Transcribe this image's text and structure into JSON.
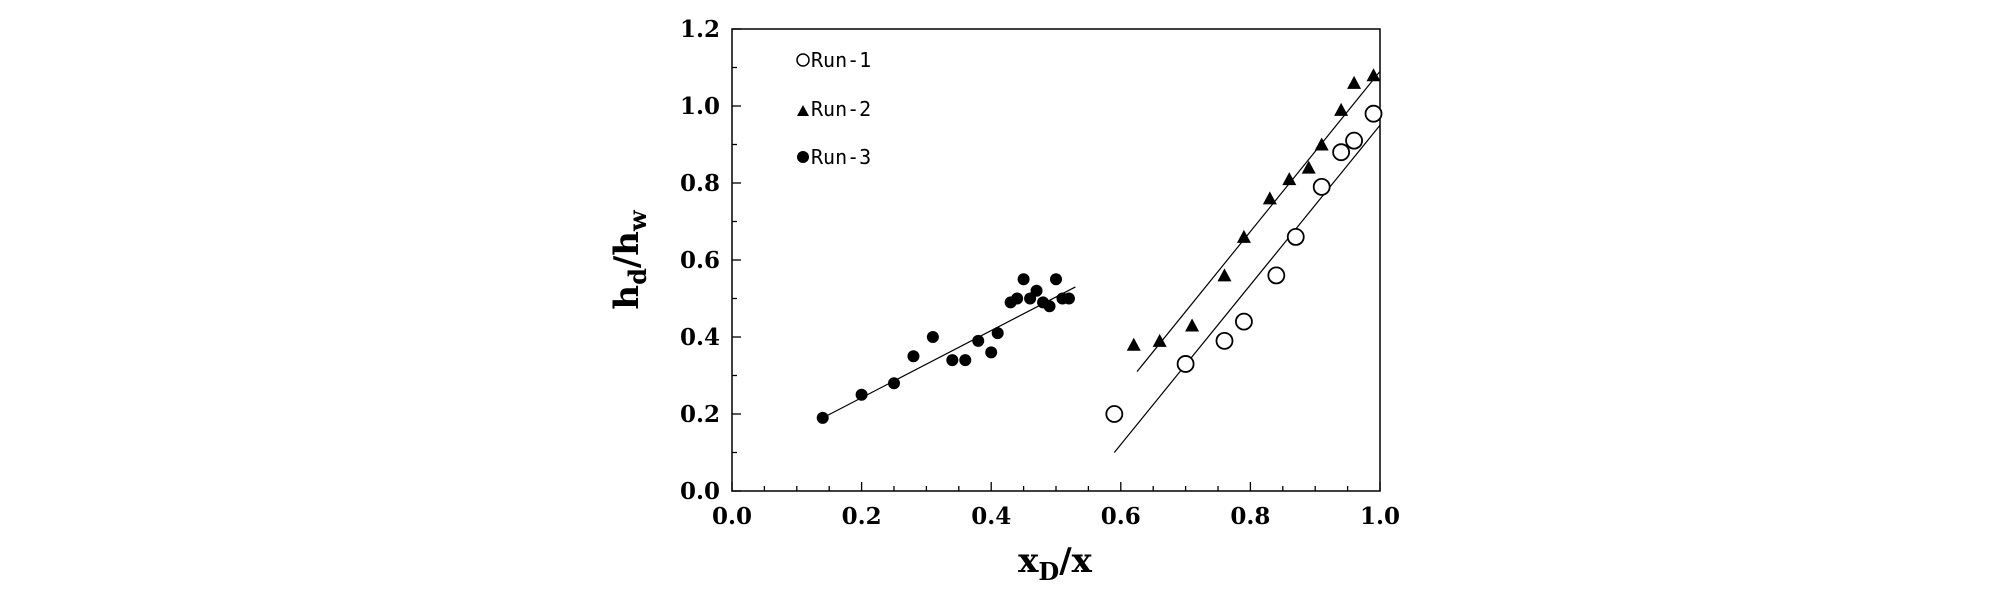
{
  "chart_data": {
    "type": "scatter",
    "xlabel": {
      "main": "x",
      "sub": "D",
      "tail": "/x"
    },
    "ylabel": {
      "main1": "h",
      "sub1": "d",
      "mid": "/h",
      "sub2": "w"
    },
    "xlim": [
      0.0,
      1.0
    ],
    "ylim": [
      0.0,
      1.2
    ],
    "xticks": [
      0.0,
      0.2,
      0.4,
      0.6,
      0.8,
      1.0
    ],
    "yticks": [
      0.0,
      0.2,
      0.4,
      0.6,
      0.8,
      1.0,
      1.2
    ],
    "xtick_labels": [
      "0.0",
      "0.2",
      "0.4",
      "0.6",
      "0.8",
      "1.0"
    ],
    "ytick_labels": [
      "0.0",
      "0.2",
      "0.4",
      "0.6",
      "0.8",
      "1.0",
      "1.2"
    ],
    "legend_position": "top-left",
    "series": [
      {
        "name": "Run-1",
        "marker": "open-circle",
        "x": [
          0.59,
          0.7,
          0.76,
          0.79,
          0.84,
          0.87,
          0.91,
          0.94,
          0.96,
          0.99
        ],
        "y": [
          0.2,
          0.33,
          0.39,
          0.44,
          0.56,
          0.66,
          0.79,
          0.88,
          0.91,
          0.98
        ],
        "fit": {
          "x": [
            0.59,
            1.0
          ],
          "y": [
            0.1,
            0.95
          ]
        }
      },
      {
        "name": "Run-2",
        "marker": "filled-triangle",
        "x": [
          0.62,
          0.66,
          0.71,
          0.76,
          0.79,
          0.83,
          0.86,
          0.89,
          0.91,
          0.94,
          0.96,
          0.99
        ],
        "y": [
          0.38,
          0.39,
          0.43,
          0.56,
          0.66,
          0.76,
          0.81,
          0.84,
          0.9,
          0.99,
          1.06,
          1.08
        ],
        "fit": {
          "x": [
            0.625,
            1.0
          ],
          "y": [
            0.31,
            1.09
          ]
        }
      },
      {
        "name": "Run-3",
        "marker": "filled-circle",
        "x": [
          0.14,
          0.2,
          0.25,
          0.28,
          0.31,
          0.34,
          0.36,
          0.38,
          0.4,
          0.41,
          0.43,
          0.44,
          0.45,
          0.46,
          0.47,
          0.48,
          0.49,
          0.5,
          0.51,
          0.52
        ],
        "y": [
          0.19,
          0.25,
          0.28,
          0.35,
          0.4,
          0.34,
          0.34,
          0.39,
          0.36,
          0.41,
          0.49,
          0.5,
          0.55,
          0.5,
          0.52,
          0.49,
          0.48,
          0.55,
          0.5,
          0.5
        ],
        "fit": {
          "x": [
            0.14,
            0.53
          ],
          "y": [
            0.19,
            0.53
          ]
        }
      }
    ]
  }
}
